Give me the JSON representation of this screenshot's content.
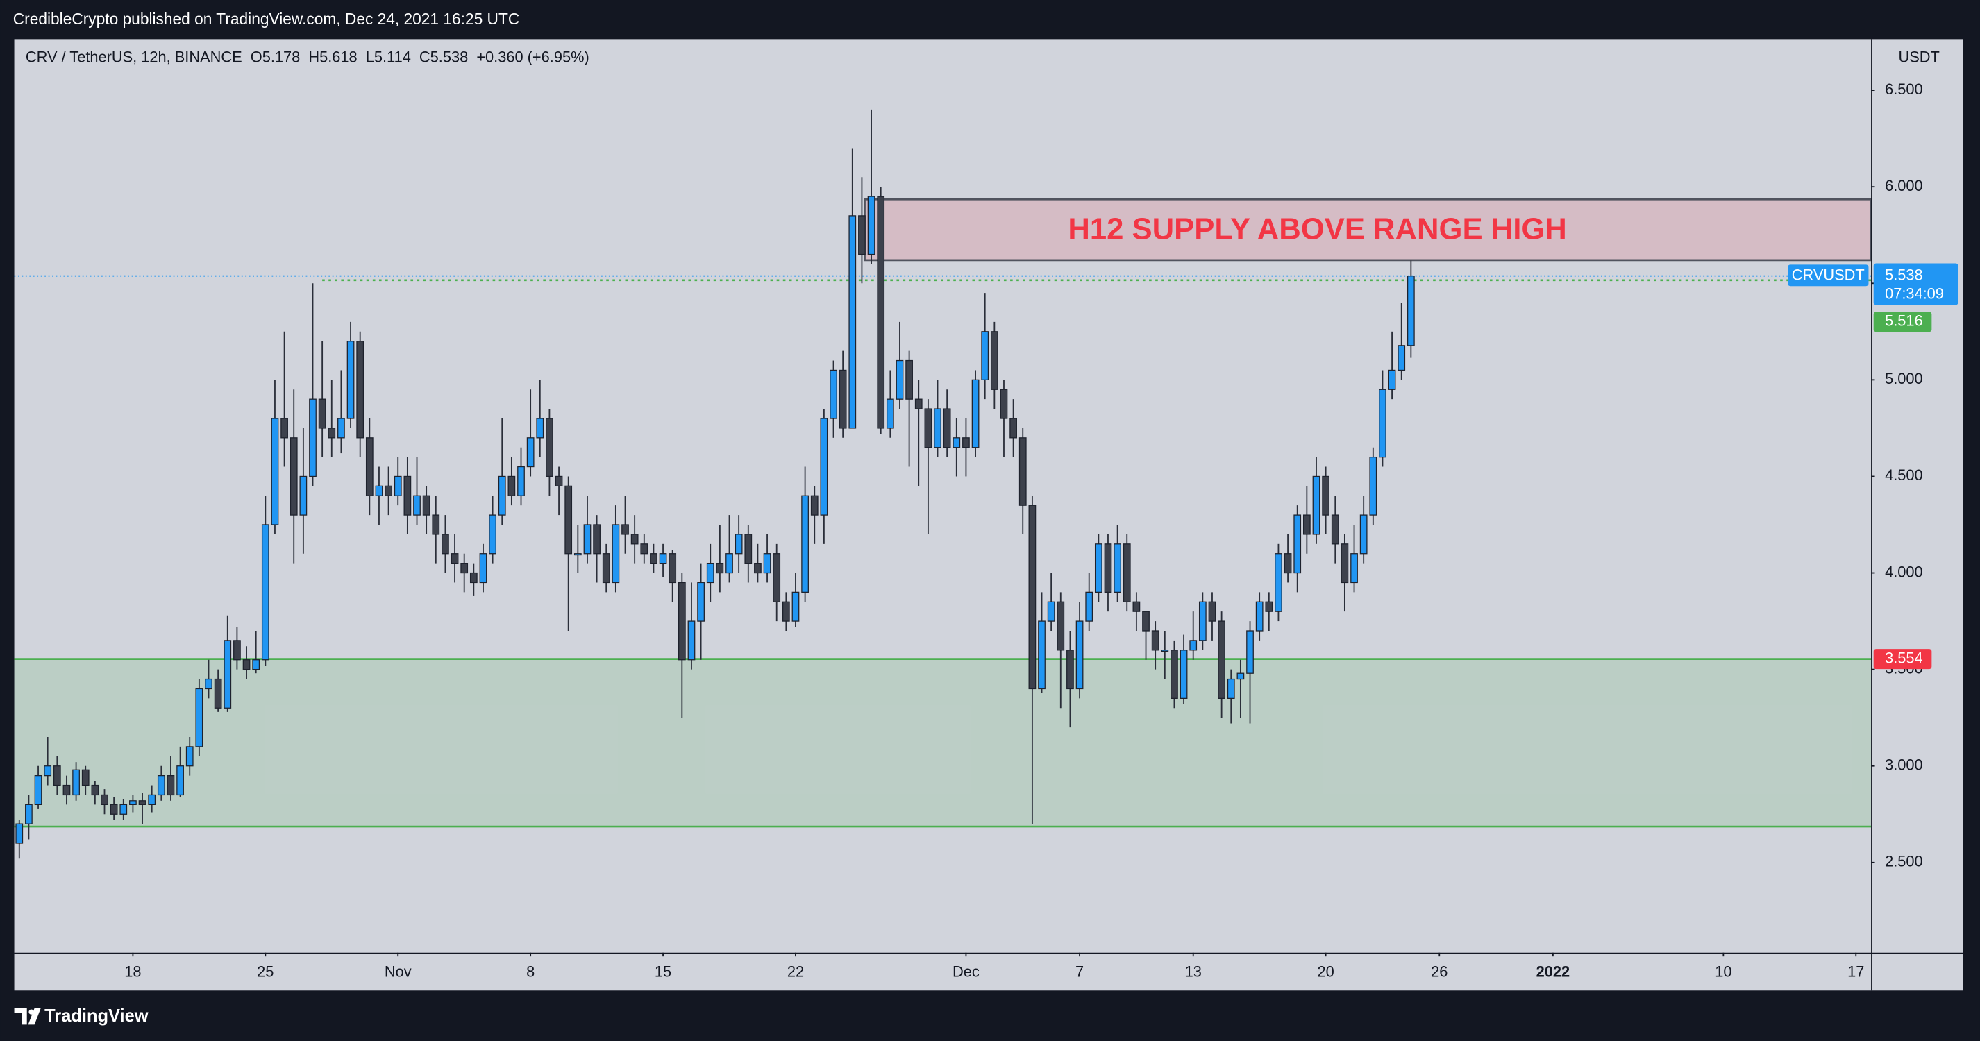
{
  "header": {
    "published": "CredibleCrypto published on TradingView.com, Dec 24, 2021 16:25 UTC",
    "brand": "TradingView"
  },
  "chart_data": {
    "type": "candlestick",
    "legend": "CRV / TetherUS, 12h, BINANCE  O5.178  H5.618  L5.114  C5.538  +0.360 (+6.95%)",
    "y_unit": "USDT",
    "xlim": [
      -0.53,
      195.6
    ],
    "ylim": [
      2.033,
      6.765
    ],
    "xticks": [
      {
        "value": 12,
        "label": "18"
      },
      {
        "value": 26,
        "label": "25"
      },
      {
        "value": 40,
        "label": "Nov"
      },
      {
        "value": 54,
        "label": "8"
      },
      {
        "value": 68,
        "label": "15"
      },
      {
        "value": 82,
        "label": "22"
      },
      {
        "value": 100,
        "label": "Dec"
      },
      {
        "value": 112,
        "label": "7"
      },
      {
        "value": 124,
        "label": "13"
      },
      {
        "value": 138,
        "label": "20"
      },
      {
        "value": 150,
        "label": "26"
      },
      {
        "value": 162,
        "label": "2022"
      },
      {
        "value": 180,
        "label": "10"
      },
      {
        "value": 194,
        "label": "17"
      }
    ],
    "yticks": [
      {
        "value": 2.5,
        "label": "2.500"
      },
      {
        "value": 3,
        "label": "3.000"
      },
      {
        "value": 3.5,
        "label": "3.500"
      },
      {
        "value": 4,
        "label": "4.000"
      },
      {
        "value": 4.5,
        "label": "4.500"
      },
      {
        "value": 5,
        "label": "5.000"
      },
      {
        "value": 5.5,
        "label": "5.500"
      },
      {
        "value": 6,
        "label": "6.000"
      },
      {
        "value": 6.5,
        "label": "6.500"
      }
    ],
    "grid": false,
    "series": [
      {
        "name": "CRVUSDT",
        "up_color": "#2196f3",
        "down_color": "#3d414c",
        "open": [
          2.6,
          2.7,
          2.8,
          2.95,
          3.0,
          2.9,
          2.85,
          2.98,
          2.9,
          2.85,
          2.8,
          2.75,
          2.8,
          2.82,
          2.8,
          2.85,
          2.95,
          2.85,
          3.0,
          3.1,
          3.4,
          3.45,
          3.3,
          3.65,
          3.55,
          3.5,
          3.55,
          4.25,
          4.8,
          4.7,
          4.3,
          4.5,
          4.9,
          4.75,
          4.7,
          4.8,
          5.2,
          4.7,
          4.4,
          4.45,
          4.4,
          4.5,
          4.3,
          4.4,
          4.3,
          4.2,
          4.1,
          4.05,
          4.0,
          3.95,
          4.1,
          4.3,
          4.5,
          4.4,
          4.55,
          4.7,
          4.8,
          4.5,
          4.45,
          4.1,
          4.1,
          4.25,
          4.1,
          3.95,
          4.25,
          4.2,
          4.15,
          4.1,
          4.05,
          4.1,
          3.95,
          3.55,
          3.75,
          3.95,
          4.05,
          4.0,
          4.1,
          4.2,
          4.05,
          4.0,
          4.1,
          3.85,
          3.75,
          3.9,
          4.4,
          4.3,
          4.8,
          5.05,
          4.75,
          5.85,
          5.65,
          5.95,
          4.75,
          4.9,
          5.1,
          4.9,
          4.85,
          4.65,
          4.85,
          4.65,
          4.7,
          4.65,
          5.0,
          5.25,
          4.95,
          4.8,
          4.7,
          4.35,
          3.4,
          3.75,
          3.85,
          3.6,
          3.4,
          3.75,
          3.9,
          4.15,
          3.9,
          4.15,
          3.85,
          3.8,
          3.7,
          3.6,
          3.6,
          3.35,
          3.6,
          3.65,
          3.85,
          3.75,
          3.35,
          3.45,
          3.48,
          3.7,
          3.85,
          3.8,
          4.1,
          4.0,
          4.3,
          4.2,
          4.5,
          4.3,
          4.15,
          3.95,
          4.1,
          4.3,
          4.6,
          4.95,
          5.05,
          5.178
        ],
        "high": [
          2.72,
          2.85,
          3.0,
          3.15,
          3.05,
          2.95,
          3.02,
          3.0,
          2.92,
          2.88,
          2.84,
          2.83,
          2.85,
          2.86,
          2.9,
          3.0,
          3.05,
          3.1,
          3.15,
          3.45,
          3.55,
          3.5,
          3.78,
          3.72,
          3.62,
          3.7,
          4.4,
          5.0,
          5.25,
          4.95,
          4.75,
          5.5,
          5.2,
          5.0,
          5.05,
          5.3,
          5.25,
          4.8,
          4.55,
          4.55,
          4.6,
          4.6,
          4.6,
          4.45,
          4.4,
          4.3,
          4.2,
          4.1,
          4.05,
          4.15,
          4.4,
          4.8,
          4.6,
          4.65,
          4.95,
          5.0,
          4.85,
          4.55,
          4.5,
          4.25,
          4.4,
          4.3,
          4.15,
          4.35,
          4.4,
          4.3,
          4.2,
          4.15,
          4.15,
          4.12,
          4.0,
          3.95,
          4.05,
          4.15,
          4.25,
          4.3,
          4.3,
          4.25,
          4.15,
          4.2,
          4.15,
          3.9,
          4.0,
          4.55,
          4.45,
          4.85,
          5.1,
          5.15,
          6.2,
          6.05,
          6.4,
          6.0,
          5.05,
          5.3,
          5.15,
          5.0,
          4.9,
          5.0,
          4.95,
          4.8,
          4.8,
          5.05,
          5.45,
          5.3,
          5.0,
          4.9,
          4.75,
          4.4,
          3.9,
          4.0,
          3.9,
          3.7,
          3.85,
          4.0,
          4.2,
          4.2,
          4.25,
          4.2,
          3.9,
          3.8,
          3.75,
          3.7,
          3.65,
          3.68,
          3.8,
          3.9,
          3.9,
          3.8,
          3.5,
          3.55,
          3.75,
          3.9,
          3.9,
          4.15,
          4.2,
          4.35,
          4.45,
          4.6,
          4.55,
          4.4,
          4.2,
          4.25,
          4.4,
          4.65,
          5.05,
          5.25,
          5.4,
          5.618
        ],
        "low": [
          2.52,
          2.62,
          2.78,
          2.9,
          2.85,
          2.8,
          2.82,
          2.85,
          2.8,
          2.75,
          2.72,
          2.72,
          2.76,
          2.7,
          2.76,
          2.82,
          2.82,
          2.84,
          2.95,
          3.05,
          3.35,
          3.28,
          3.28,
          3.5,
          3.45,
          3.48,
          3.52,
          4.2,
          4.55,
          4.05,
          4.1,
          4.45,
          4.6,
          4.6,
          4.62,
          4.75,
          4.6,
          4.3,
          4.25,
          4.3,
          4.35,
          4.2,
          4.25,
          4.2,
          4.05,
          4.0,
          3.95,
          3.9,
          3.88,
          3.9,
          4.05,
          4.25,
          4.35,
          4.35,
          4.5,
          4.6,
          4.4,
          4.3,
          3.7,
          4.0,
          4.05,
          3.95,
          3.9,
          3.9,
          4.1,
          4.05,
          4.05,
          4.0,
          3.98,
          3.85,
          3.25,
          3.5,
          3.55,
          3.85,
          3.9,
          3.95,
          4.0,
          3.95,
          3.95,
          3.95,
          3.75,
          3.7,
          3.72,
          3.85,
          4.15,
          4.15,
          4.7,
          4.7,
          4.75,
          5.5,
          5.6,
          4.72,
          4.7,
          4.85,
          4.55,
          4.45,
          4.2,
          4.6,
          4.6,
          4.5,
          4.5,
          4.6,
          4.9,
          4.85,
          4.6,
          4.6,
          4.2,
          2.7,
          3.38,
          3.7,
          3.3,
          3.2,
          3.35,
          3.7,
          3.85,
          3.8,
          3.85,
          3.8,
          3.7,
          3.55,
          3.5,
          3.45,
          3.3,
          3.32,
          3.55,
          3.6,
          3.65,
          3.25,
          3.22,
          3.25,
          3.22,
          3.65,
          3.7,
          3.75,
          3.95,
          3.9,
          4.1,
          4.15,
          4.2,
          4.05,
          3.8,
          3.9,
          4.05,
          4.25,
          4.55,
          4.9,
          5.0,
          5.114
        ],
        "close": [
          2.7,
          2.8,
          2.95,
          3.0,
          2.9,
          2.85,
          2.98,
          2.9,
          2.85,
          2.8,
          2.75,
          2.8,
          2.82,
          2.8,
          2.85,
          2.95,
          2.85,
          3.0,
          3.1,
          3.4,
          3.45,
          3.3,
          3.65,
          3.55,
          3.5,
          3.55,
          4.25,
          4.8,
          4.7,
          4.3,
          4.5,
          4.9,
          4.75,
          4.7,
          4.8,
          5.2,
          4.7,
          4.4,
          4.45,
          4.4,
          4.5,
          4.3,
          4.4,
          4.3,
          4.2,
          4.1,
          4.05,
          4.0,
          3.95,
          4.1,
          4.3,
          4.5,
          4.4,
          4.55,
          4.7,
          4.8,
          4.5,
          4.45,
          4.1,
          4.1,
          4.25,
          4.1,
          3.95,
          4.25,
          4.2,
          4.15,
          4.1,
          4.05,
          4.1,
          3.95,
          3.55,
          3.75,
          3.95,
          4.05,
          4.0,
          4.1,
          4.2,
          4.05,
          4.0,
          4.1,
          3.85,
          3.75,
          3.9,
          4.4,
          4.3,
          4.8,
          5.05,
          4.75,
          5.85,
          5.65,
          5.95,
          4.75,
          4.9,
          5.1,
          4.9,
          4.85,
          4.65,
          4.85,
          4.65,
          4.7,
          4.65,
          5.0,
          5.25,
          4.95,
          4.8,
          4.7,
          4.35,
          3.4,
          3.75,
          3.85,
          3.6,
          3.4,
          3.75,
          3.9,
          4.15,
          3.9,
          4.15,
          3.85,
          3.8,
          3.7,
          3.6,
          3.6,
          3.35,
          3.6,
          3.65,
          3.85,
          3.75,
          3.35,
          3.45,
          3.48,
          3.7,
          3.85,
          3.8,
          4.1,
          4.0,
          4.3,
          4.2,
          4.5,
          4.3,
          4.15,
          3.95,
          4.1,
          4.3,
          4.6,
          4.95,
          5.05,
          5.178,
          5.538
        ]
      }
    ],
    "last_price": 5.538,
    "last_price_color": "#2196f3",
    "countdown": "07:34:09",
    "level_line": {
      "value": 5.516,
      "from": 32,
      "color": "#4caf50"
    },
    "support_zone": {
      "range": [
        2.686,
        3.554
      ],
      "color": "#4caf50",
      "label_color": "#f23645"
    },
    "supply_zone": {
      "range": [
        5.62,
        5.935
      ],
      "from": 89.3,
      "label": "H12 SUPPLY ABOVE RANGE HIGH",
      "color": "#f23645"
    }
  }
}
